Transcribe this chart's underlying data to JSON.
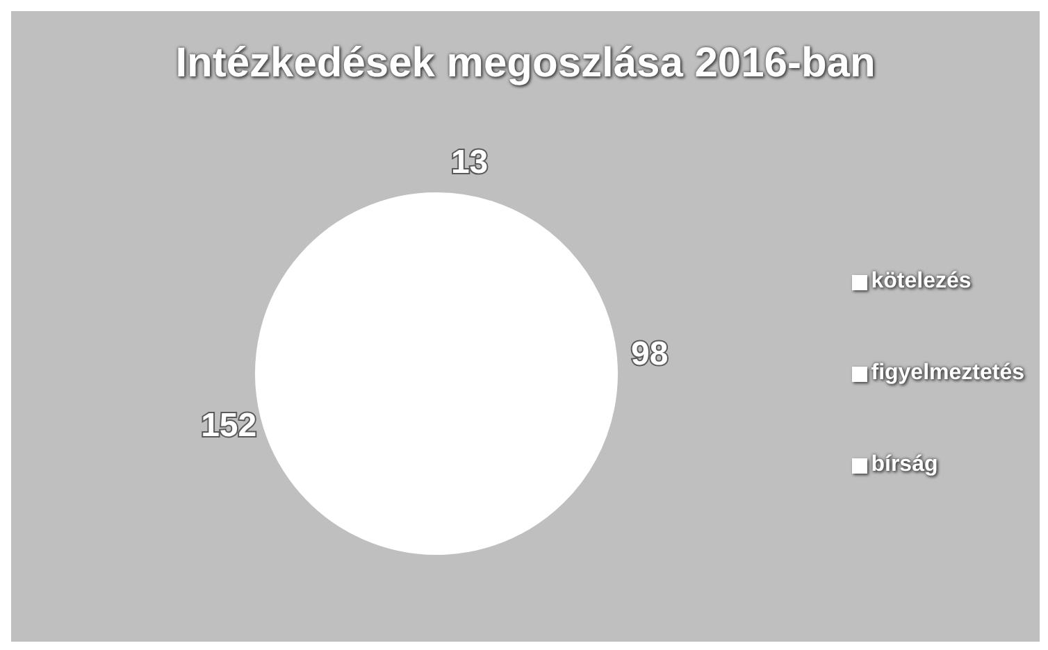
{
  "chart_data": {
    "type": "pie",
    "title": "Intézkedések megoszlása 2016-ban",
    "categories": [
      "kötelezés",
      "figyelmeztetés",
      "bírság"
    ],
    "values": [
      13,
      98,
      152
    ],
    "colors": [
      "#ffffff",
      "#ffffff",
      "#ffffff"
    ],
    "data_labels": true,
    "legend": "right"
  }
}
